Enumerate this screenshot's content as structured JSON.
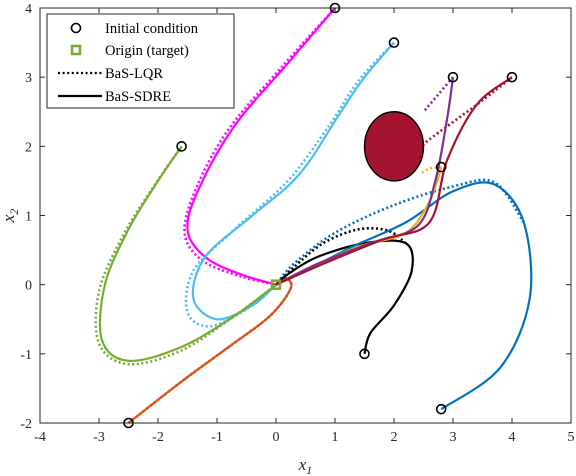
{
  "chart_data": {
    "type": "line",
    "xlabel": "x1",
    "xlabel_base": "x",
    "xlabel_sub": "1",
    "ylabel": "x2",
    "ylabel_base": "x",
    "ylabel_sub": "2",
    "xlim": [
      -4,
      5
    ],
    "ylim": [
      -2,
      4
    ],
    "xticks": [
      -4,
      -3,
      -2,
      -1,
      0,
      1,
      2,
      3,
      4,
      5
    ],
    "yticks": [
      -2,
      -1,
      0,
      1,
      2,
      3,
      4
    ],
    "grid": false,
    "legend_position": "top-left",
    "legend": {
      "initial_condition": "Initial condition",
      "origin": "Origin (target)",
      "lqr": "BaS-LQR",
      "sdre": "BaS-SDRE"
    },
    "origin": [
      0,
      0
    ],
    "obstacle": {
      "center": [
        2,
        2
      ],
      "rx": 0.5,
      "ry": 0.5,
      "color": "#A2142F"
    },
    "colors": {
      "marker": "#000000",
      "origin_marker": "#77AC30",
      "legend_border": "#262626"
    },
    "trajectories": [
      {
        "color": "#FF00FF",
        "initial": [
          1,
          4
        ],
        "sdre": [
          [
            1,
            4
          ],
          [
            0.2,
            3.2
          ],
          [
            -0.7,
            2.3
          ],
          [
            -1.3,
            1.4
          ],
          [
            -1.5,
            0.8
          ],
          [
            -1.2,
            0.4
          ],
          [
            -0.6,
            0.15
          ],
          [
            0,
            0
          ]
        ],
        "lqr": [
          [
            1,
            4
          ],
          [
            0.1,
            3.15
          ],
          [
            -0.8,
            2.25
          ],
          [
            -1.35,
            1.4
          ],
          [
            -1.55,
            0.75
          ],
          [
            -1.25,
            0.35
          ],
          [
            -0.6,
            0.12
          ],
          [
            0,
            0
          ]
        ]
      },
      {
        "color": "#4DBEEE",
        "initial": [
          2,
          3.5
        ],
        "sdre": [
          [
            2,
            3.5
          ],
          [
            1.5,
            3.0
          ],
          [
            1.1,
            2.5
          ],
          [
            0.4,
            1.6
          ],
          [
            -0.4,
            1.0
          ],
          [
            -1.2,
            0.4
          ],
          [
            -1.4,
            -0.2
          ],
          [
            -1.0,
            -0.5
          ],
          [
            -0.4,
            -0.3
          ],
          [
            0,
            0
          ]
        ],
        "lqr": [
          [
            2,
            3.5
          ],
          [
            1.4,
            2.95
          ],
          [
            0.9,
            2.3
          ],
          [
            0.2,
            1.5
          ],
          [
            -0.7,
            0.8
          ],
          [
            -1.4,
            0.2
          ],
          [
            -1.5,
            -0.4
          ],
          [
            -1.1,
            -0.6
          ],
          [
            -0.4,
            -0.3
          ],
          [
            0,
            0
          ]
        ]
      },
      {
        "color": "#77AC30",
        "initial": [
          -1.6,
          2
        ],
        "sdre": [
          [
            -1.6,
            2
          ],
          [
            -2.0,
            1.5
          ],
          [
            -2.5,
            0.8
          ],
          [
            -2.9,
            0.0
          ],
          [
            -2.95,
            -0.8
          ],
          [
            -2.5,
            -1.1
          ],
          [
            -1.6,
            -0.9
          ],
          [
            -0.7,
            -0.45
          ],
          [
            0,
            0
          ]
        ],
        "lqr": [
          [
            -1.6,
            2
          ],
          [
            -2.05,
            1.45
          ],
          [
            -2.6,
            0.7
          ],
          [
            -3.0,
            -0.1
          ],
          [
            -3.0,
            -0.85
          ],
          [
            -2.5,
            -1.15
          ],
          [
            -1.6,
            -0.95
          ],
          [
            -0.7,
            -0.45
          ],
          [
            0,
            0
          ]
        ]
      },
      {
        "color": "#D95319",
        "initial": [
          -2.5,
          -2
        ],
        "sdre": [
          [
            -2.5,
            -2
          ],
          [
            -1.6,
            -1.4
          ],
          [
            -0.8,
            -0.9
          ],
          [
            -0.1,
            -0.45
          ],
          [
            0.25,
            -0.05
          ],
          [
            0.15,
            0.1
          ],
          [
            0,
            0
          ]
        ],
        "lqr": [
          [
            -2.5,
            -2
          ],
          [
            -1.6,
            -1.4
          ],
          [
            -0.8,
            -0.9
          ],
          [
            -0.1,
            -0.45
          ],
          [
            0.25,
            -0.05
          ],
          [
            0.15,
            0.1
          ],
          [
            0,
            0
          ]
        ]
      },
      {
        "color": "#000000",
        "initial": [
          1.5,
          -1
        ],
        "sdre": [
          [
            1.5,
            -1
          ],
          [
            1.6,
            -0.7
          ],
          [
            2.0,
            -0.3
          ],
          [
            2.3,
            0.2
          ],
          [
            2.2,
            0.6
          ],
          [
            1.5,
            0.6
          ],
          [
            0.7,
            0.4
          ],
          [
            0.2,
            0.15
          ],
          [
            0,
            0
          ]
        ],
        "lqr": [
          [
            2.2,
            0.6
          ],
          [
            1.9,
            0.78
          ],
          [
            1.4,
            0.8
          ],
          [
            0.8,
            0.6
          ],
          [
            0.3,
            0.25
          ],
          [
            0,
            0
          ]
        ]
      },
      {
        "color": "#0072BD",
        "initial": [
          2.8,
          -1.8
        ],
        "sdre": [
          [
            2.8,
            -1.8
          ],
          [
            3.8,
            -1.2
          ],
          [
            4.3,
            -0.2
          ],
          [
            4.2,
            0.9
          ],
          [
            3.7,
            1.45
          ],
          [
            3.0,
            1.35
          ],
          [
            2.2,
            0.9
          ],
          [
            1.3,
            0.55
          ],
          [
            0.5,
            0.2
          ],
          [
            0,
            0
          ]
        ],
        "lqr": [
          [
            4.2,
            0.9
          ],
          [
            3.7,
            1.48
          ],
          [
            3.0,
            1.42
          ],
          [
            2.0,
            1.15
          ],
          [
            1.0,
            0.75
          ],
          [
            0.3,
            0.3
          ],
          [
            0,
            0
          ]
        ]
      },
      {
        "color": "#EDB120",
        "initial": [
          2.8,
          1.7
        ],
        "sdre": [
          [
            2.8,
            1.7
          ],
          [
            2.6,
            1.2
          ],
          [
            2.2,
            0.75
          ],
          [
            1.4,
            0.55
          ],
          [
            0.6,
            0.25
          ],
          [
            0,
            0
          ]
        ],
        "lqr": [
          [
            2.8,
            1.7
          ],
          [
            2.6,
            1.68
          ],
          [
            2.45,
            1.6
          ]
        ]
      },
      {
        "color": "#7E2F8E",
        "initial": [
          3,
          3
        ],
        "sdre": [
          [
            3,
            3
          ],
          [
            2.9,
            2.4
          ],
          [
            2.7,
            1.5
          ],
          [
            2.4,
            0.85
          ],
          [
            1.6,
            0.6
          ],
          [
            0.7,
            0.3
          ],
          [
            0,
            0
          ]
        ],
        "lqr": [
          [
            3,
            3
          ],
          [
            2.75,
            2.75
          ],
          [
            2.5,
            2.5
          ]
        ]
      },
      {
        "color": "#A2142F",
        "initial": [
          4,
          3
        ],
        "sdre": [
          [
            4,
            3
          ],
          [
            3.4,
            2.6
          ],
          [
            2.9,
            1.8
          ],
          [
            2.6,
            0.9
          ],
          [
            1.8,
            0.65
          ],
          [
            0.8,
            0.3
          ],
          [
            0,
            0
          ]
        ],
        "lqr": [
          [
            4,
            3
          ],
          [
            3.4,
            2.6
          ],
          [
            2.6,
            2.1
          ],
          [
            2.5,
            2.0
          ]
        ]
      }
    ]
  }
}
